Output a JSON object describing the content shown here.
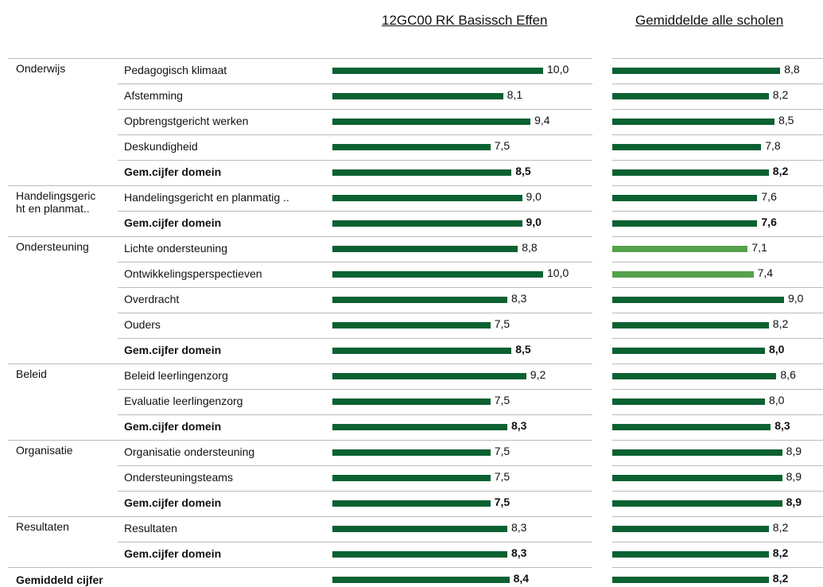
{
  "header": {
    "left": "12GC00 RK Basissch Effen",
    "right": "Gemiddelde alle scholen"
  },
  "xlim": [
    0,
    10
  ],
  "bar_color": "#0b6131",
  "groups": [
    {
      "label": [
        "Onderwijs"
      ],
      "rows": [
        {
          "label": "Pedagogisch klimaat",
          "school": 10.0,
          "school_label": "10,0",
          "average": 8.8,
          "average_label": "8,8"
        },
        {
          "label": "Afstemming",
          "school": 8.1,
          "school_label": "8,1",
          "average": 8.2,
          "average_label": "8,2"
        },
        {
          "label": "Opbrengstgericht werken",
          "school": 9.4,
          "school_label": "9,4",
          "average": 8.5,
          "average_label": "8,5"
        },
        {
          "label": "Deskundigheid",
          "school": 7.5,
          "school_label": "7,5",
          "average": 7.8,
          "average_label": "7,8"
        },
        {
          "label": "Gem.cijfer domein",
          "school": 8.5,
          "school_label": "8,5",
          "average": 8.2,
          "average_label": "8,2",
          "bold": true
        }
      ]
    },
    {
      "label": [
        "Handelingsgeric",
        "ht en planmat.."
      ],
      "rows": [
        {
          "label": "Handelingsgericht en planmatig ..",
          "school": 9.0,
          "school_label": "9,0",
          "average": 7.6,
          "average_label": "7,6"
        },
        {
          "label": "Gem.cijfer domein",
          "school": 9.0,
          "school_label": "9,0",
          "average": 7.6,
          "average_label": "7,6",
          "bold": true
        }
      ]
    },
    {
      "label": [
        "Ondersteuning"
      ],
      "rows": [
        {
          "label": "Lichte ondersteuning",
          "school": 8.8,
          "school_label": "8,8",
          "average": 7.1,
          "average_label": "7,1",
          "average_color": "#56a14c"
        },
        {
          "label": "Ontwikkelingsperspectieven",
          "school": 10.0,
          "school_label": "10,0",
          "average": 7.4,
          "average_label": "7,4",
          "average_color": "#56a14c"
        },
        {
          "label": "Overdracht",
          "school": 8.3,
          "school_label": "8,3",
          "average": 9.0,
          "average_label": "9,0"
        },
        {
          "label": "Ouders",
          "school": 7.5,
          "school_label": "7,5",
          "average": 8.2,
          "average_label": "8,2"
        },
        {
          "label": "Gem.cijfer domein",
          "school": 8.5,
          "school_label": "8,5",
          "average": 8.0,
          "average_label": "8,0",
          "bold": true
        }
      ]
    },
    {
      "label": [
        "Beleid"
      ],
      "rows": [
        {
          "label": "Beleid leerlingenzorg",
          "school": 9.2,
          "school_label": "9,2",
          "average": 8.6,
          "average_label": "8,6"
        },
        {
          "label": "Evaluatie leerlingenzorg",
          "school": 7.5,
          "school_label": "7,5",
          "average": 8.0,
          "average_label": "8,0"
        },
        {
          "label": "Gem.cijfer domein",
          "school": 8.3,
          "school_label": "8,3",
          "average": 8.3,
          "average_label": "8,3",
          "bold": true
        }
      ]
    },
    {
      "label": [
        "Organisatie"
      ],
      "rows": [
        {
          "label": "Organisatie ondersteuning",
          "school": 7.5,
          "school_label": "7,5",
          "average": 8.9,
          "average_label": "8,9"
        },
        {
          "label": "Ondersteuningsteams",
          "school": 7.5,
          "school_label": "7,5",
          "average": 8.9,
          "average_label": "8,9"
        },
        {
          "label": "Gem.cijfer domein",
          "school": 7.5,
          "school_label": "7,5",
          "average": 8.9,
          "average_label": "8,9",
          "bold": true
        }
      ]
    },
    {
      "label": [
        "Resultaten"
      ],
      "rows": [
        {
          "label": "Resultaten",
          "school": 8.3,
          "school_label": "8,3",
          "average": 8.2,
          "average_label": "8,2"
        },
        {
          "label": "Gem.cijfer domein",
          "school": 8.3,
          "school_label": "8,3",
          "average": 8.2,
          "average_label": "8,2",
          "bold": true
        }
      ]
    }
  ],
  "total": {
    "label": "Gemiddeld cijfer",
    "school": 8.4,
    "school_label": "8,4",
    "average": 8.2,
    "average_label": "8,2",
    "bold": true
  }
}
